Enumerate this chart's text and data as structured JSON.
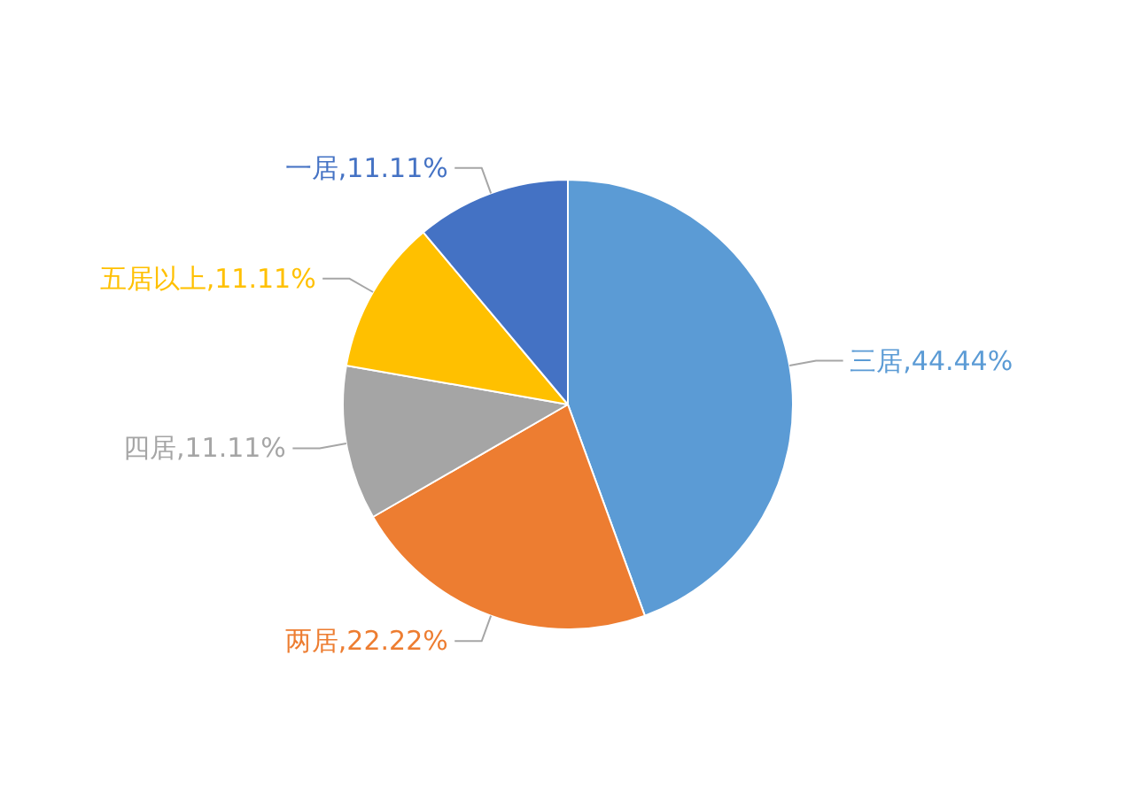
{
  "chart_data": {
    "type": "pie",
    "categories": [
      "三居",
      "两居",
      "四居",
      "五居以上",
      "一居"
    ],
    "values": [
      44.44,
      22.22,
      11.11,
      11.11,
      11.11
    ],
    "colors": [
      "#5b9bd5",
      "#ed7d31",
      "#a5a5a5",
      "#ffc000",
      "#4472c4"
    ],
    "value_labels": [
      ",44.44%",
      ",22.22%",
      ",11.11%",
      ",11.11%",
      ",11.11%"
    ],
    "legend": false
  }
}
